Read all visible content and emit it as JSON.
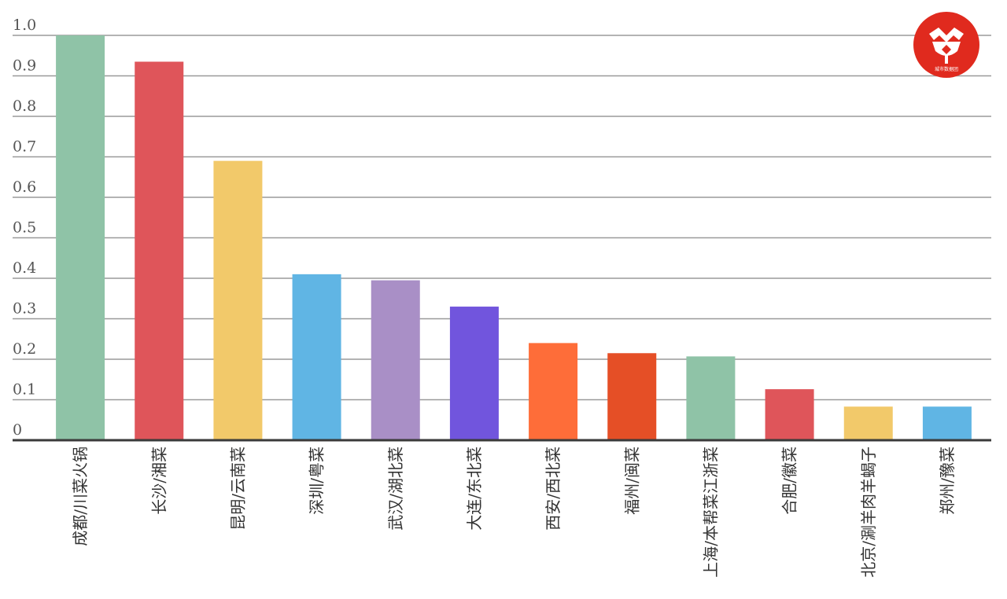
{
  "chart_data": {
    "type": "bar",
    "title": "",
    "xlabel": "",
    "ylabel": "",
    "ylim": [
      0,
      1.0
    ],
    "yticks": [
      "0",
      "0.1",
      "0.2",
      "0.3",
      "0.4",
      "0.5",
      "0.6",
      "0.7",
      "0.8",
      "0.9",
      "1.0"
    ],
    "grid": true,
    "legend": "none",
    "categories": [
      "成都/川菜火锅",
      "长沙/湘菜",
      "昆明/云南菜",
      "深圳/粤菜",
      "武汉/湖北菜",
      "大连/东北菜",
      "西安/西北菜",
      "福州/闽菜",
      "上海/本帮菜江浙菜",
      "合肥/徽菜",
      "北京/涮羊肉羊蝎子",
      "郑州/豫菜"
    ],
    "values": [
      1.0,
      0.935,
      0.69,
      0.41,
      0.395,
      0.33,
      0.24,
      0.215,
      0.207,
      0.126,
      0.083,
      0.083
    ],
    "colors": [
      "#8fc3a7",
      "#df555a",
      "#f2c96a",
      "#60b5e4",
      "#a98fc6",
      "#7155dd",
      "#fe6d39",
      "#e54f26",
      "#8fc3a7",
      "#df555a",
      "#f2c96a",
      "#60b5e4"
    ]
  },
  "logo": {
    "color": "#e02a1e",
    "caption": "城市数据团"
  }
}
